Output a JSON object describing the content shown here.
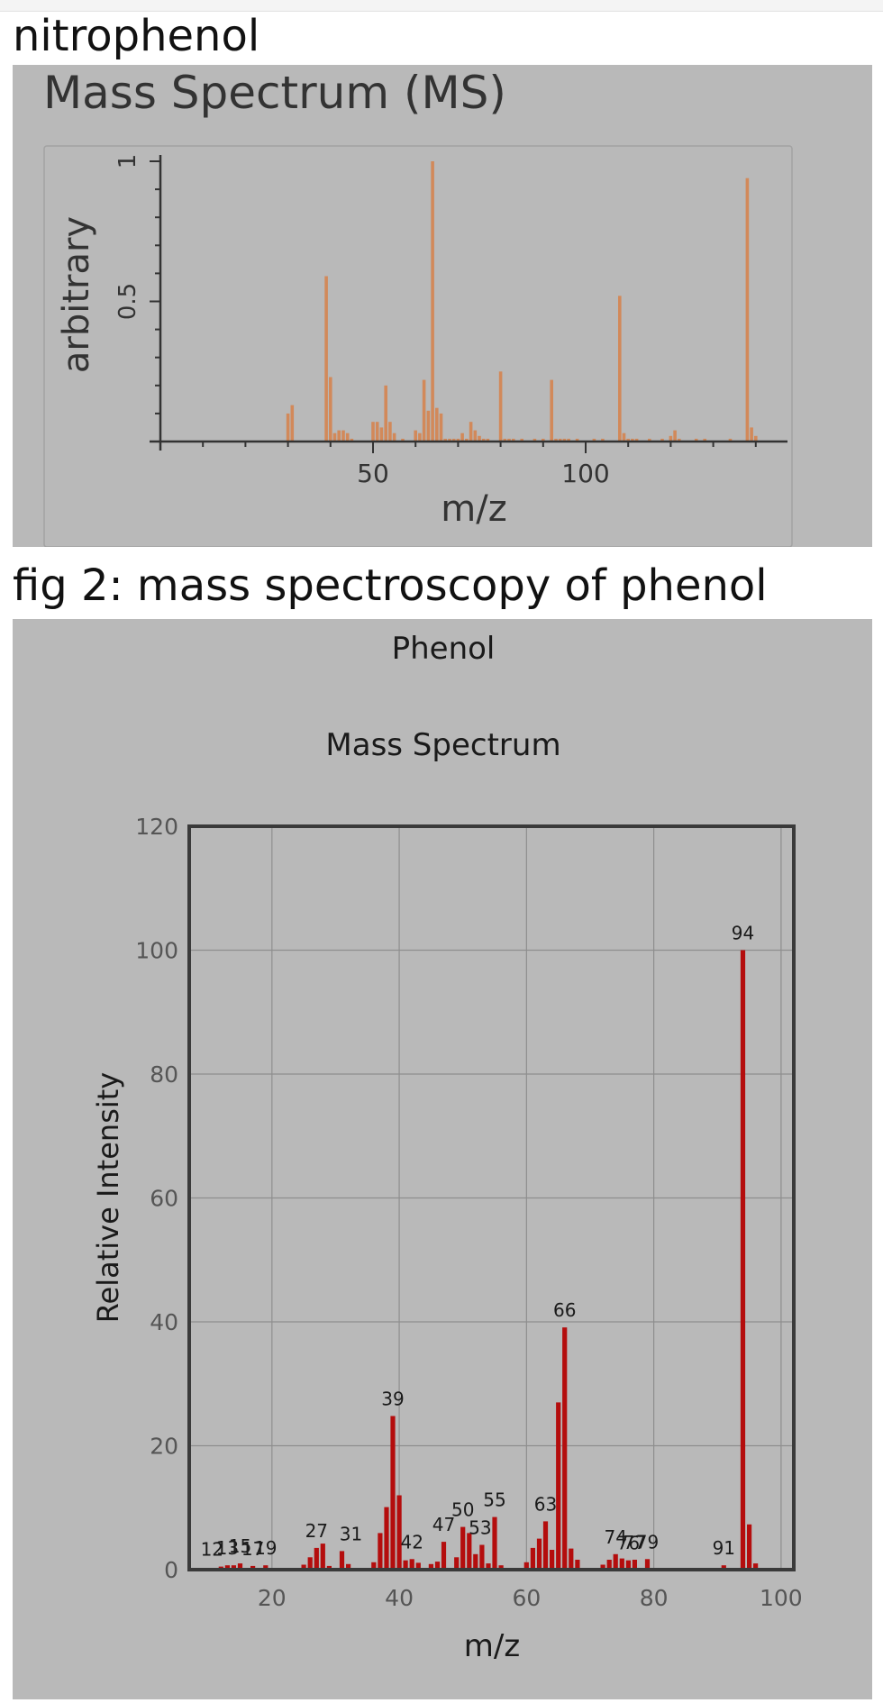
{
  "captions": {
    "first": "nitrophenol",
    "second": "fig 2: mass spectroscopy of phenol"
  },
  "colors": {
    "panel_background": "#b9b9b9",
    "nitrophenol_bars": "#d2895a",
    "phenol_bars": "#b40d0d"
  },
  "chart_data": [
    {
      "type": "bar",
      "title": "Mass Spectrum (MS)",
      "xlabel": "m/z",
      "ylabel": "arbitrary",
      "xlim": [
        0,
        150
      ],
      "ylim": [
        0,
        1
      ],
      "xticks": [
        50,
        100
      ],
      "xtick_labels": [
        "50",
        "100"
      ],
      "yticks": [
        0.5,
        1
      ],
      "ytick_labels": [
        "0.5",
        "1"
      ],
      "grid": false,
      "x": [
        30,
        31,
        39,
        40,
        41,
        42,
        43,
        44,
        45,
        50,
        51,
        52,
        53,
        54,
        55,
        57,
        60,
        61,
        62,
        63,
        64,
        65,
        66,
        67,
        68,
        69,
        70,
        71,
        72,
        73,
        74,
        75,
        76,
        77,
        80,
        81,
        82,
        83,
        85,
        88,
        90,
        92,
        93,
        94,
        95,
        96,
        98,
        102,
        104,
        108,
        109,
        110,
        111,
        112,
        115,
        118,
        120,
        121,
        122,
        126,
        128,
        134,
        138,
        139,
        140
      ],
      "y": [
        0.1,
        0.13,
        0.59,
        0.23,
        0.03,
        0.04,
        0.04,
        0.03,
        0.01,
        0.07,
        0.07,
        0.05,
        0.2,
        0.07,
        0.03,
        0.01,
        0.04,
        0.03,
        0.22,
        0.11,
        1.0,
        0.12,
        0.1,
        0.01,
        0.01,
        0.01,
        0.01,
        0.03,
        0.01,
        0.07,
        0.04,
        0.02,
        0.01,
        0.01,
        0.25,
        0.01,
        0.01,
        0.01,
        0.01,
        0.01,
        0.01,
        0.22,
        0.01,
        0.01,
        0.01,
        0.01,
        0.01,
        0.01,
        0.01,
        0.52,
        0.03,
        0.01,
        0.01,
        0.01,
        0.01,
        0.01,
        0.02,
        0.04,
        0.01,
        0.01,
        0.01,
        0.01,
        0.94,
        0.05,
        0.02
      ]
    },
    {
      "type": "bar",
      "header": "Phenol",
      "title": "Mass Spectrum",
      "xlabel": "m/z",
      "ylabel": "Relative Intensity",
      "xlim": [
        7,
        102
      ],
      "ylim": [
        0,
        120
      ],
      "xticks": [
        20,
        40,
        60,
        80,
        100
      ],
      "xtick_labels": [
        "20",
        "40",
        "60",
        "80",
        "100"
      ],
      "yticks": [
        0,
        20,
        40,
        60,
        80,
        100,
        120
      ],
      "ytick_labels": [
        "0",
        "20",
        "40",
        "60",
        "80",
        "100",
        "120"
      ],
      "grid": true,
      "x": [
        12,
        13,
        14,
        15,
        17,
        19,
        25,
        26,
        27,
        28,
        29,
        31,
        32,
        36,
        37,
        38,
        39,
        40,
        41,
        42,
        43,
        45,
        46,
        47,
        49,
        50,
        51,
        52,
        53,
        54,
        55,
        56,
        60,
        61,
        62,
        63,
        64,
        65,
        66,
        67,
        68,
        72,
        73,
        74,
        75,
        76,
        77,
        79,
        91,
        93,
        94,
        95,
        96
      ],
      "y": [
        0.5,
        0.7,
        0.7,
        1.0,
        0.6,
        0.7,
        0.8,
        2.0,
        3.5,
        4.2,
        0.6,
        3.0,
        0.9,
        1.2,
        5.9,
        10.1,
        24.8,
        12.0,
        1.5,
        1.7,
        1.1,
        0.9,
        1.3,
        4.5,
        2.0,
        6.9,
        5.9,
        2.5,
        4.0,
        1.0,
        8.5,
        0.7,
        1.2,
        3.5,
        5.0,
        7.8,
        3.2,
        27.0,
        39.1,
        3.4,
        1.6,
        0.8,
        1.6,
        2.5,
        1.8,
        1.5,
        1.6,
        1.7,
        0.7,
        0.2,
        100.0,
        7.3,
        1.0
      ],
      "peak_labels": [
        {
          "x": 12,
          "text": "12",
          "dx": -10
        },
        {
          "x": 13,
          "text": "13",
          "dx": 0
        },
        {
          "x": 15,
          "text": "15",
          "dx": 0
        },
        {
          "x": 17,
          "text": "17",
          "dx": 0
        },
        {
          "x": 19,
          "text": "19",
          "dx": 0
        },
        {
          "x": 27,
          "text": "27",
          "dx": 0
        },
        {
          "x": 31,
          "text": "31",
          "dx": 10
        },
        {
          "x": 39,
          "text": "39",
          "dx": 0
        },
        {
          "x": 42,
          "text": "42",
          "dx": 0
        },
        {
          "x": 47,
          "text": "47",
          "dx": 0
        },
        {
          "x": 50,
          "text": "50",
          "dx": 0
        },
        {
          "x": 53,
          "text": "53",
          "dx": -2
        },
        {
          "x": 55,
          "text": "55",
          "dx": 0
        },
        {
          "x": 63,
          "text": "63",
          "dx": 0
        },
        {
          "x": 66,
          "text": "66",
          "dx": 0
        },
        {
          "x": 74,
          "text": "74",
          "dx": 0
        },
        {
          "x": 76,
          "text": "76",
          "dx": 0
        },
        {
          "x": 77,
          "text": "77",
          "dx": 0
        },
        {
          "x": 79,
          "text": "79",
          "dx": 0
        },
        {
          "x": 91,
          "text": "91",
          "dx": 0
        },
        {
          "x": 94,
          "text": "94",
          "dx": 0
        }
      ]
    }
  ]
}
